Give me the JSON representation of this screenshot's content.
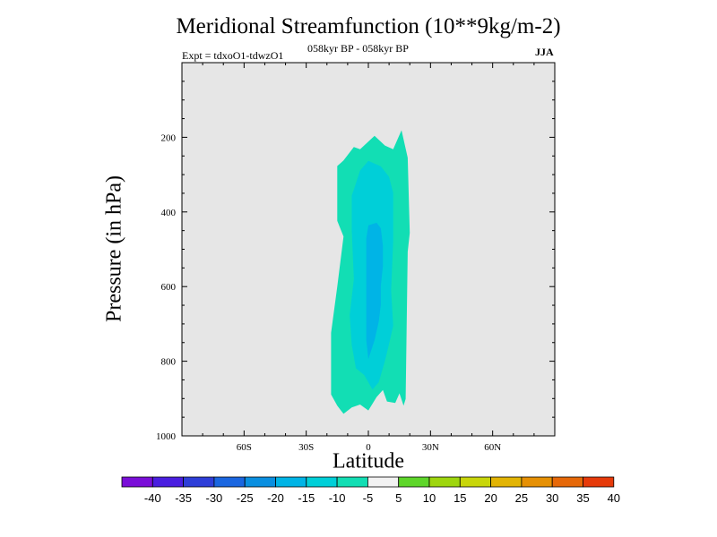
{
  "chart_data": {
    "type": "contour",
    "title": "Meridional Streamfunction (10**9kg/m-2)",
    "experiment": "Expt = tdxoO1-tdwzO1",
    "period": "058kyr BP - 058kyr BP",
    "season": "JJA",
    "xlabel": "Latitude",
    "ylabel": "Pressure (in hPa)",
    "xlim": [
      -90,
      90
    ],
    "ylim": [
      1000,
      0
    ],
    "x_ticks": [
      {
        "value": -60,
        "label": "60S"
      },
      {
        "value": -30,
        "label": "30S"
      },
      {
        "value": 0,
        "label": "0"
      },
      {
        "value": 30,
        "label": "30N"
      },
      {
        "value": 60,
        "label": "60N"
      }
    ],
    "y_ticks": [
      {
        "value": 200,
        "label": "200"
      },
      {
        "value": 400,
        "label": "400"
      },
      {
        "value": 600,
        "label": "600"
      },
      {
        "value": 800,
        "label": "800"
      },
      {
        "value": 1000,
        "label": "1000"
      }
    ],
    "colorbar": {
      "levels": [
        "-40",
        "-35",
        "-30",
        "-25",
        "-20",
        "-15",
        "-10",
        "-5",
        "5",
        "10",
        "15",
        "20",
        "25",
        "30",
        "35",
        "40"
      ],
      "colors": [
        "#7a0ed8",
        "#4a1ee0",
        "#2e3ed8",
        "#1a66e0",
        "#0a8fe0",
        "#00b4e6",
        "#00cfd8",
        "#12deb4",
        "#f2f2f2",
        "#5ed62a",
        "#9ed60e",
        "#c8d60a",
        "#e2b404",
        "#e69004",
        "#e66808",
        "#e63a0a"
      ]
    },
    "regions": [
      {
        "level": "-10 to -5",
        "color": "#12deb4",
        "points": [
          [
            -15,
            277
          ],
          [
            -12,
            262
          ],
          [
            -7,
            226
          ],
          [
            -4,
            232
          ],
          [
            3,
            196
          ],
          [
            8,
            222
          ],
          [
            12,
            232
          ],
          [
            16,
            181
          ],
          [
            19,
            255
          ],
          [
            20,
            456
          ],
          [
            19,
            507
          ],
          [
            18,
            901
          ],
          [
            17,
            919
          ],
          [
            15,
            886
          ],
          [
            13,
            912
          ],
          [
            9,
            908
          ],
          [
            7,
            877
          ],
          [
            4,
            896
          ],
          [
            0,
            932
          ],
          [
            -4,
            916
          ],
          [
            -8,
            924
          ],
          [
            -12,
            941
          ],
          [
            -15,
            919
          ],
          [
            -18,
            889
          ],
          [
            -18,
            724
          ],
          [
            -15,
            600
          ],
          [
            -12,
            466
          ],
          [
            -15,
            424
          ],
          [
            -15,
            280
          ]
        ]
      },
      {
        "level": "-15 to -10",
        "color": "#00cfd8",
        "points": [
          [
            -7,
            340
          ],
          [
            -4,
            289
          ],
          [
            0,
            263
          ],
          [
            6,
            278
          ],
          [
            10,
            306
          ],
          [
            12,
            349
          ],
          [
            12,
            477
          ],
          [
            11,
            611
          ],
          [
            12,
            705
          ],
          [
            10,
            754
          ],
          [
            8,
            799
          ],
          [
            5,
            856
          ],
          [
            2,
            876
          ],
          [
            -2,
            837
          ],
          [
            -6,
            819
          ],
          [
            -8,
            757
          ],
          [
            -9,
            677
          ],
          [
            -7,
            580
          ],
          [
            -8,
            450
          ],
          [
            -8,
            356
          ]
        ]
      },
      {
        "level": "-20 to -15",
        "color": "#00b4e6",
        "points": [
          [
            0,
            436
          ],
          [
            4,
            429
          ],
          [
            6,
            444
          ],
          [
            7,
            490
          ],
          [
            7,
            546
          ],
          [
            6,
            598
          ],
          [
            6,
            649
          ],
          [
            5,
            694
          ],
          [
            3,
            744
          ],
          [
            0,
            794
          ],
          [
            -1,
            744
          ],
          [
            -1,
            649
          ],
          [
            -1,
            546
          ],
          [
            -1,
            470
          ]
        ]
      }
    ]
  }
}
